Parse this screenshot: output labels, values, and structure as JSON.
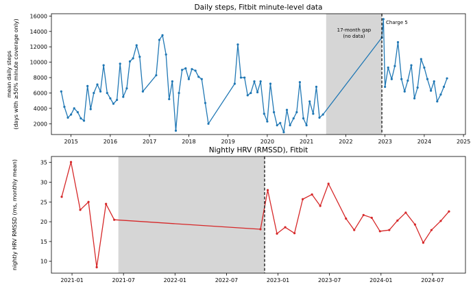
{
  "chart_data": [
    {
      "type": "line",
      "title": "Daily steps, Fitbit minute-level data",
      "xlabel": "",
      "ylabel": "mean daily steps\n(days with ≥50% minute coverage only)",
      "xlim": [
        2014.5,
        2025.05
      ],
      "ylim": [
        600,
        16300
      ],
      "xticks": [
        2015,
        2016,
        2017,
        2018,
        2019,
        2020,
        2021,
        2022,
        2023,
        2024,
        2025
      ],
      "xtick_labels": [
        "2015",
        "2016",
        "2017",
        "2018",
        "2019",
        "2020",
        "2021",
        "2022",
        "2023",
        "2024",
        "2025"
      ],
      "yticks": [
        2000,
        4000,
        6000,
        8000,
        10000,
        12000,
        14000,
        16000
      ],
      "ytick_labels": [
        "2000",
        "4000",
        "6000",
        "8000",
        "10000",
        "12000",
        "14000",
        "16000"
      ],
      "color": "#1f77b4",
      "gap_shade": [
        2021.5,
        2022.92
      ],
      "gap_label": "17-month gap\n(no data)",
      "event_x": 2022.92,
      "event_label": "Charge 5",
      "series": [
        {
          "x": [
            2014.75,
            2014.83,
            2014.92,
            2015.0,
            2015.08,
            2015.17,
            2015.25,
            2015.33,
            2015.42,
            2015.5,
            2015.58,
            2015.67,
            2015.75,
            2015.83,
            2015.92,
            2016.0,
            2016.08,
            2016.17,
            2016.25,
            2016.33,
            2016.42,
            2016.5,
            2016.58,
            2016.67,
            2016.75,
            2016.83,
            2017.17,
            2017.25,
            2017.33,
            2017.42,
            2017.5,
            2017.58,
            2017.67,
            2017.75,
            2017.83,
            2017.92,
            2018.0,
            2018.08,
            2018.17,
            2018.25,
            2018.33,
            2018.42,
            2018.5,
            2019.17,
            2019.25,
            2019.33,
            2019.42,
            2019.5,
            2019.58,
            2019.67,
            2019.75,
            2019.83,
            2019.92,
            2020.0,
            2020.08,
            2020.17,
            2020.25,
            2020.33,
            2020.42,
            2020.5,
            2020.58,
            2020.67,
            2020.75,
            2020.83,
            2020.92,
            2021.0,
            2021.08,
            2021.17,
            2021.25,
            2021.33,
            2021.42,
            2022.92,
            2022.96,
            2023.0,
            2023.08,
            2023.17,
            2023.25,
            2023.33,
            2023.42,
            2023.5,
            2023.58,
            2023.67,
            2023.75,
            2023.83,
            2023.92,
            2024.0,
            2024.08,
            2024.17,
            2024.25,
            2024.33,
            2024.42,
            2024.5,
            2024.58
          ],
          "y": [
            6200,
            4200,
            2800,
            3200,
            4000,
            3500,
            2700,
            2400,
            6900,
            3900,
            6000,
            7100,
            6200,
            9600,
            6000,
            5300,
            4600,
            5100,
            9800,
            5500,
            6600,
            10100,
            10500,
            12200,
            10700,
            6200,
            8300,
            12900,
            13500,
            11000,
            5200,
            7500,
            1100,
            6000,
            9000,
            9200,
            7800,
            9100,
            8900,
            8100,
            7800,
            4700,
            2000,
            7200,
            12300,
            8000,
            8000,
            5700,
            6000,
            7500,
            6100,
            7500,
            3300,
            2300,
            7200,
            3500,
            1800,
            2100,
            900,
            3800,
            1800,
            2700,
            3500,
            7400,
            2700,
            1800,
            4900,
            3300,
            6800,
            2800,
            3200,
            13200,
            15600,
            6800,
            9300,
            7800,
            9500,
            12600,
            7800,
            6200,
            7600,
            9600,
            5300,
            6700,
            10400,
            9300,
            7800,
            6300,
            7500,
            4900,
            5800,
            6800,
            7900
          ]
        }
      ]
    },
    {
      "type": "line",
      "title": "Nightly HRV (RMSSD), Fitbit",
      "xlabel": "",
      "ylabel": "nightly HRV RMSSD (ms, monthly mean)",
      "xlim": [
        2020.8,
        2024.82
      ],
      "ylim": [
        7,
        36.5
      ],
      "xticks": [
        2021.0,
        2021.5,
        2022.0,
        2022.5,
        2023.0,
        2023.5,
        2024.0,
        2024.5
      ],
      "xtick_labels": [
        "2021-01",
        "2021-07",
        "2022-01",
        "2022-07",
        "2023-01",
        "2023-07",
        "2024-01",
        "2024-07"
      ],
      "yticks": [
        10,
        15,
        20,
        25,
        30,
        35
      ],
      "ytick_labels": [
        "10",
        "15",
        "20",
        "25",
        "30",
        "35"
      ],
      "color": "#d62728",
      "gap_shade": [
        2021.45,
        2022.87
      ],
      "event_x": 2022.87,
      "series": [
        {
          "x": [
            2020.9,
            2020.99,
            2021.08,
            2021.16,
            2021.24,
            2021.33,
            2021.41,
            2022.83,
            2022.9,
            2022.99,
            2023.07,
            2023.16,
            2023.24,
            2023.33,
            2023.41,
            2023.49,
            2023.66,
            2023.74,
            2023.83,
            2023.91,
            2023.99,
            2024.08,
            2024.16,
            2024.24,
            2024.33,
            2024.41,
            2024.49,
            2024.58,
            2024.66
          ],
          "y": [
            26.3,
            35.1,
            23.0,
            25.0,
            8.5,
            24.5,
            20.5,
            18.1,
            28.0,
            17.0,
            18.6,
            17.1,
            25.7,
            26.9,
            24.0,
            29.6,
            20.8,
            17.9,
            21.7,
            21.0,
            17.6,
            17.9,
            20.3,
            22.3,
            19.3,
            14.7,
            17.9,
            20.2,
            22.6
          ]
        }
      ]
    }
  ]
}
